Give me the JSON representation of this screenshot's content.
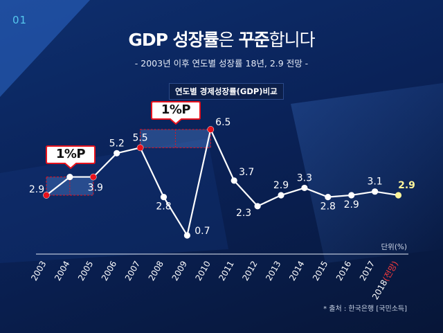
{
  "page_number": "01",
  "headline": {
    "part1": "GDP 성장률",
    "part2": "은 ",
    "part3": "꾸준",
    "part4": "합니다"
  },
  "subtitle": "- 2003년 이후 연도별 성장률 18년, 2.9 전망 -",
  "unit_label": "단위(%)",
  "source": "* 출처 : 한국은행 [국민소득]",
  "callouts": [
    {
      "text": "1%P"
    },
    {
      "text": "1%P"
    }
  ],
  "colors": {
    "accent_red": "#e8121c",
    "line_white": "#ffffff",
    "highlight_yellow": "#fff59a",
    "projection_red": "#ff3b3b"
  },
  "chart_data": {
    "type": "line",
    "title": "연도별 경제성장률(GDP)비교",
    "x": [
      "2003",
      "2004",
      "2005",
      "2006",
      "2007",
      "2008",
      "2009",
      "2010",
      "2011",
      "2012",
      "2013",
      "2014",
      "2015",
      "2016",
      "2017",
      "2018"
    ],
    "x_suffix_last": "(전망)",
    "series": [
      {
        "values": [
          2.9,
          3.9,
          3.9,
          5.2,
          5.5,
          2.8,
          0.7,
          6.5,
          3.7,
          2.3,
          2.9,
          3.3,
          2.8,
          2.9,
          3.1,
          2.9
        ]
      }
    ],
    "data_labels": [
      "2.9",
      "",
      "3.9",
      "5.2",
      "5.5",
      "2.8",
      "0.7",
      "6.5",
      "3.7",
      "2.3",
      "2.9",
      "3.3",
      "2.8",
      "2.9",
      "3.1",
      "2.9"
    ],
    "highlighted_points": [
      "2003",
      "2005",
      "2007",
      "2010"
    ],
    "projected_point": "2018",
    "ylim": [
      0,
      7
    ],
    "grid": false
  }
}
